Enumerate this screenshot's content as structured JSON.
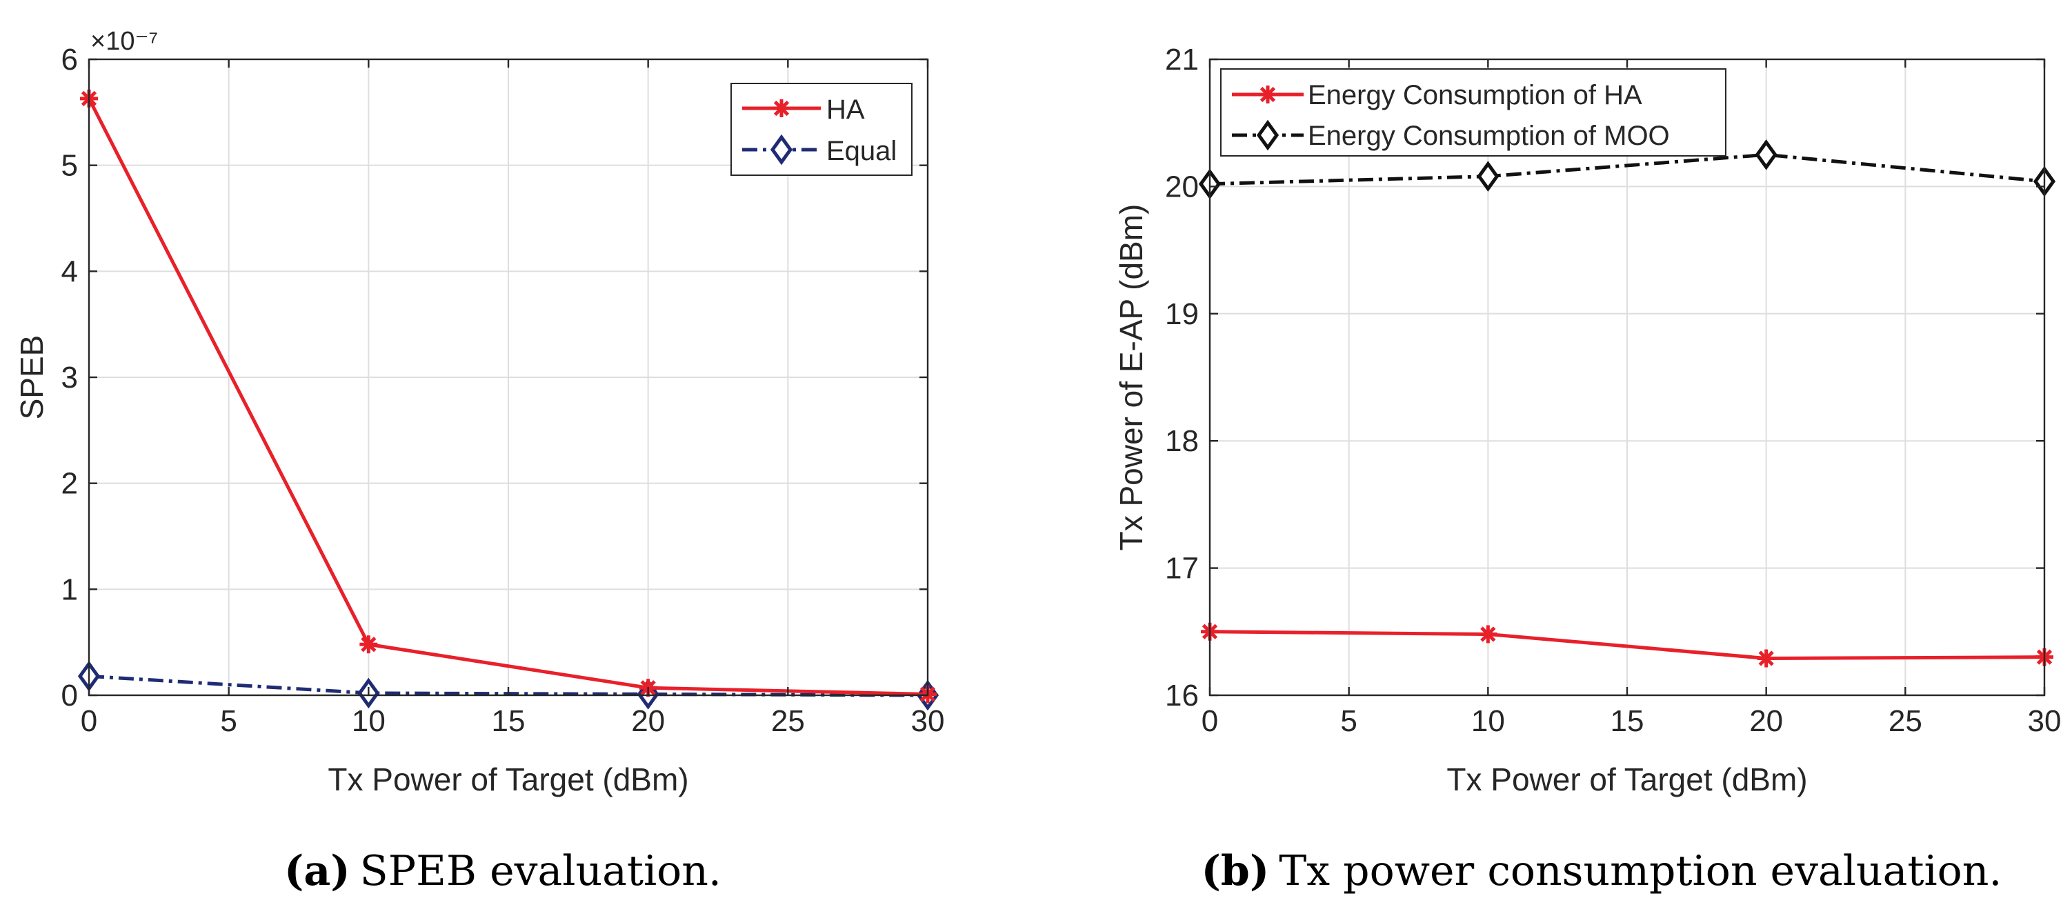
{
  "chart_data": [
    {
      "type": "line",
      "title": "",
      "xlabel": "Tx Power of Target (dBm)",
      "ylabel": "SPEB",
      "exponent_label": "×10⁻⁷",
      "x": [
        0,
        10,
        20,
        30
      ],
      "xlim": [
        0,
        30
      ],
      "ylim": [
        0,
        6
      ],
      "xticks": [
        0,
        5,
        10,
        15,
        20,
        25,
        30
      ],
      "yticks": [
        0,
        1,
        2,
        3,
        4,
        5,
        6
      ],
      "grid": true,
      "legend_position": "top-right",
      "series": [
        {
          "name": "HA",
          "values": [
            5.63,
            0.48,
            0.07,
            0.01
          ],
          "color": "#e8202a",
          "marker": "asterisk",
          "line": "solid"
        },
        {
          "name": "Equal",
          "values": [
            0.18,
            0.02,
            0.01,
            0.0
          ],
          "color": "#1f2c74",
          "marker": "diamond",
          "line": "dashdot"
        }
      ],
      "caption_label": "(a)",
      "caption_text": "SPEB evaluation."
    },
    {
      "type": "line",
      "title": "",
      "xlabel": "Tx Power of Target (dBm)",
      "ylabel": "Tx Power of E-AP (dBm)",
      "x": [
        0,
        10,
        20,
        30
      ],
      "xlim": [
        0,
        30
      ],
      "ylim": [
        16,
        21
      ],
      "xticks": [
        0,
        5,
        10,
        15,
        20,
        25,
        30
      ],
      "yticks": [
        16,
        17,
        18,
        19,
        20,
        21
      ],
      "grid": true,
      "legend_position": "top-left",
      "series": [
        {
          "name": "Energy Consumption of HA",
          "values": [
            16.5,
            16.48,
            16.29,
            16.3
          ],
          "color": "#e8202a",
          "marker": "asterisk",
          "line": "solid"
        },
        {
          "name": "Energy Consumption of MOO",
          "values": [
            20.02,
            20.08,
            20.25,
            20.04
          ],
          "color": "#111111",
          "marker": "diamond",
          "line": "dashdot"
        }
      ],
      "caption_label": "(b)",
      "caption_text": "Tx power consumption evaluation."
    }
  ]
}
